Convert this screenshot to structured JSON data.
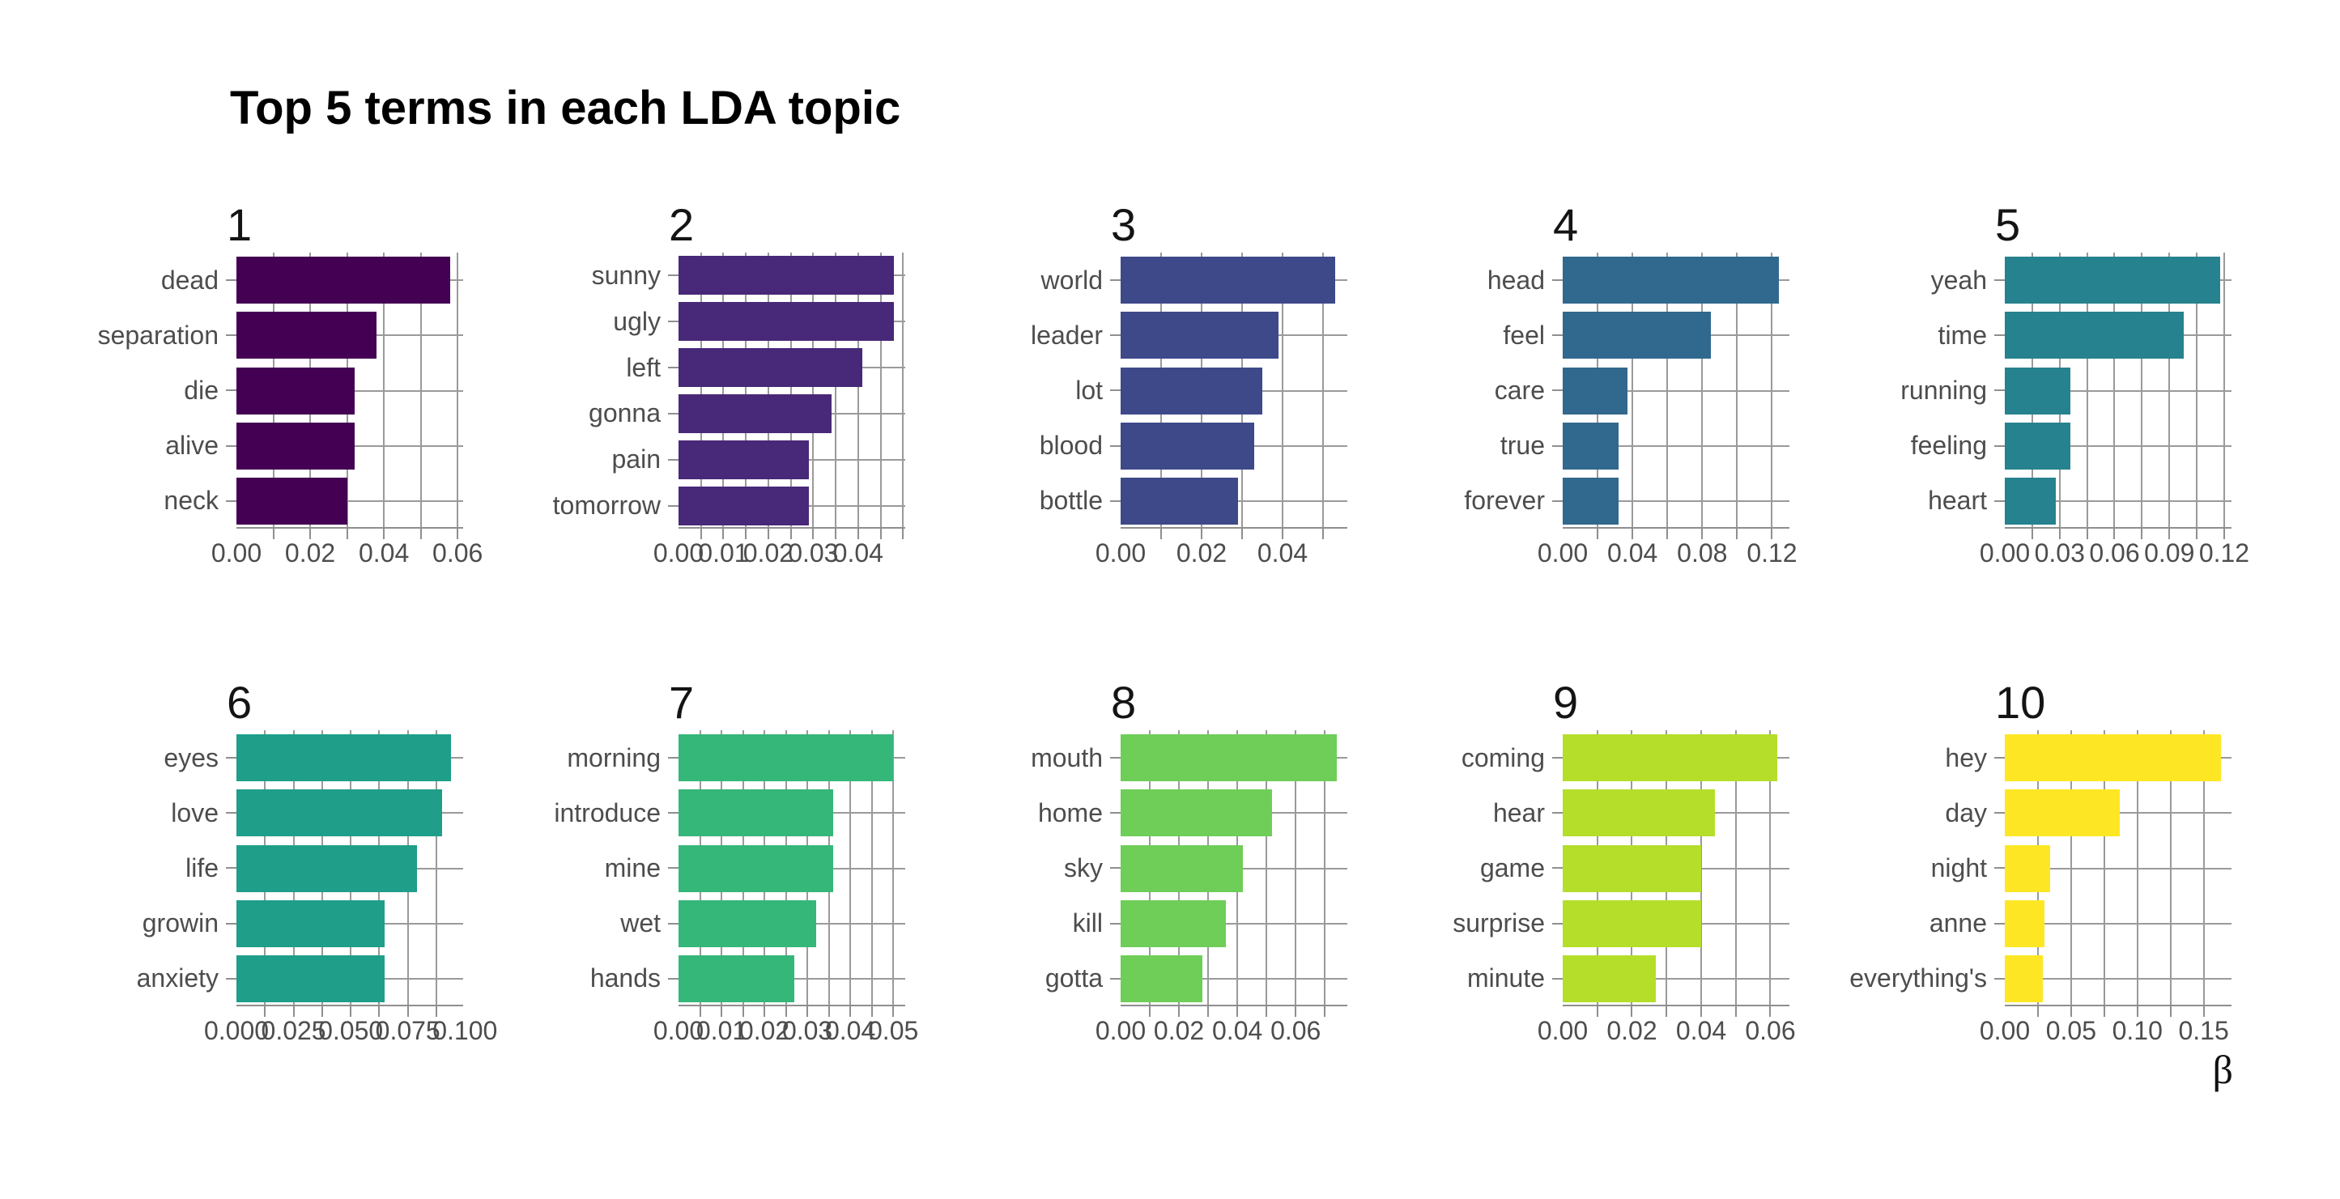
{
  "figure": {
    "title": "Top 5 terms in each LDA topic",
    "x_axis_title": "β"
  },
  "style": {
    "background": "#ffffff",
    "grid_color": "#9a9a9a",
    "tick_color": "#8f8f8f",
    "axis_text_color": "#4d4d4d",
    "strip_text_color": "#141414",
    "title_color": "#000000"
  },
  "chart_data": {
    "type": "bar",
    "orientation": "horizontal",
    "title": "Top 5 terms in each LDA topic",
    "xlabel": "β",
    "ylabel": "",
    "grid": true,
    "legend": false,
    "facet_layout": {
      "rows": 2,
      "cols": 5
    },
    "facets": [
      {
        "label": "1",
        "color": "#440154",
        "xmax": 0.0615,
        "minor_step": 0.01,
        "xticks": [
          {
            "v": 0,
            "label": "0.00"
          },
          {
            "v": 0.02,
            "label": "0.02"
          },
          {
            "v": 0.04,
            "label": "0.04"
          },
          {
            "v": 0.06,
            "label": "0.06"
          }
        ],
        "bars": [
          {
            "term": "dead",
            "value": 0.058
          },
          {
            "term": "separation",
            "value": 0.038
          },
          {
            "term": "die",
            "value": 0.032
          },
          {
            "term": "alive",
            "value": 0.032
          },
          {
            "term": "neck",
            "value": 0.03
          }
        ]
      },
      {
        "label": "2",
        "color": "#482878",
        "xmax": 0.0505,
        "minor_step": 0.005,
        "xticks": [
          {
            "v": 0,
            "label": "0.00"
          },
          {
            "v": 0.01,
            "label": "0.01"
          },
          {
            "v": 0.02,
            "label": "0.02"
          },
          {
            "v": 0.03,
            "label": "0.03"
          },
          {
            "v": 0.04,
            "label": "0.04"
          }
        ],
        "bars": [
          {
            "term": "sunny",
            "value": 0.048
          },
          {
            "term": "ugly",
            "value": 0.048
          },
          {
            "term": "left",
            "value": 0.041
          },
          {
            "term": "gonna",
            "value": 0.034
          },
          {
            "term": "pain",
            "value": 0.029
          },
          {
            "term": "tomorrow",
            "value": 0.029
          }
        ]
      },
      {
        "label": "3",
        "color": "#3e4989",
        "xmax": 0.056,
        "minor_step": 0.01,
        "xticks": [
          {
            "v": 0,
            "label": "0.00"
          },
          {
            "v": 0.02,
            "label": "0.02"
          },
          {
            "v": 0.04,
            "label": "0.04"
          }
        ],
        "bars": [
          {
            "term": "world",
            "value": 0.053
          },
          {
            "term": "leader",
            "value": 0.039
          },
          {
            "term": "lot",
            "value": 0.035
          },
          {
            "term": "blood",
            "value": 0.033
          },
          {
            "term": "bottle",
            "value": 0.029
          }
        ]
      },
      {
        "label": "4",
        "color": "#31688e",
        "xmax": 0.13,
        "minor_step": 0.02,
        "xticks": [
          {
            "v": 0,
            "label": "0.00"
          },
          {
            "v": 0.04,
            "label": "0.04"
          },
          {
            "v": 0.08,
            "label": "0.08"
          },
          {
            "v": 0.12,
            "label": "0.12"
          }
        ],
        "bars": [
          {
            "term": "head",
            "value": 0.124
          },
          {
            "term": "feel",
            "value": 0.085
          },
          {
            "term": "care",
            "value": 0.037
          },
          {
            "term": "true",
            "value": 0.032
          },
          {
            "term": "forever",
            "value": 0.032
          }
        ]
      },
      {
        "label": "5",
        "color": "#26828e",
        "xmax": 0.124,
        "minor_step": 0.015,
        "xticks": [
          {
            "v": 0,
            "label": "0.00"
          },
          {
            "v": 0.03,
            "label": "0.03"
          },
          {
            "v": 0.06,
            "label": "0.06"
          },
          {
            "v": 0.09,
            "label": "0.09"
          },
          {
            "v": 0.12,
            "label": "0.12"
          }
        ],
        "bars": [
          {
            "term": "yeah",
            "value": 0.118
          },
          {
            "term": "time",
            "value": 0.098
          },
          {
            "term": "running",
            "value": 0.036
          },
          {
            "term": "feeling",
            "value": 0.036
          },
          {
            "term": "heart",
            "value": 0.028
          }
        ]
      },
      {
        "label": "6",
        "color": "#1f9e89",
        "xmax": 0.0992,
        "minor_step": 0.0125,
        "xticks": [
          {
            "v": 0,
            "label": "0.000"
          },
          {
            "v": 0.025,
            "label": "0.025"
          },
          {
            "v": 0.05,
            "label": "0.050"
          },
          {
            "v": 0.075,
            "label": "0.075"
          },
          {
            "v": 0.1,
            "label": "0.100"
          }
        ],
        "bars": [
          {
            "term": "eyes",
            "value": 0.094
          },
          {
            "term": "love",
            "value": 0.09
          },
          {
            "term": "life",
            "value": 0.079
          },
          {
            "term": "growin",
            "value": 0.065
          },
          {
            "term": "anxiety",
            "value": 0.065
          }
        ]
      },
      {
        "label": "7",
        "color": "#35b779",
        "xmax": 0.0528,
        "minor_step": 0.005,
        "xticks": [
          {
            "v": 0,
            "label": "0.00"
          },
          {
            "v": 0.01,
            "label": "0.01"
          },
          {
            "v": 0.02,
            "label": "0.02"
          },
          {
            "v": 0.03,
            "label": "0.03"
          },
          {
            "v": 0.04,
            "label": "0.04"
          },
          {
            "v": 0.05,
            "label": "0.05"
          }
        ],
        "bars": [
          {
            "term": "morning",
            "value": 0.05
          },
          {
            "term": "introduce",
            "value": 0.036
          },
          {
            "term": "mine",
            "value": 0.036
          },
          {
            "term": "wet",
            "value": 0.032
          },
          {
            "term": "hands",
            "value": 0.027
          }
        ]
      },
      {
        "label": "8",
        "color": "#6ece58",
        "xmax": 0.0777,
        "minor_step": 0.01,
        "xticks": [
          {
            "v": 0,
            "label": "0.00"
          },
          {
            "v": 0.02,
            "label": "0.02"
          },
          {
            "v": 0.04,
            "label": "0.04"
          },
          {
            "v": 0.06,
            "label": "0.06"
          }
        ],
        "bars": [
          {
            "term": "mouth",
            "value": 0.074
          },
          {
            "term": "home",
            "value": 0.052
          },
          {
            "term": "sky",
            "value": 0.042
          },
          {
            "term": "kill",
            "value": 0.036
          },
          {
            "term": "gotta",
            "value": 0.028
          }
        ]
      },
      {
        "label": "9",
        "color": "#b5de2b",
        "xmax": 0.0655,
        "minor_step": 0.01,
        "xticks": [
          {
            "v": 0,
            "label": "0.00"
          },
          {
            "v": 0.02,
            "label": "0.02"
          },
          {
            "v": 0.04,
            "label": "0.04"
          },
          {
            "v": 0.06,
            "label": "0.06"
          }
        ],
        "bars": [
          {
            "term": "coming",
            "value": 0.062
          },
          {
            "term": "hear",
            "value": 0.044
          },
          {
            "term": "game",
            "value": 0.04
          },
          {
            "term": "surprise",
            "value": 0.04
          },
          {
            "term": "minute",
            "value": 0.027
          }
        ]
      },
      {
        "label": "10",
        "color": "#fde725",
        "xmax": 0.171,
        "minor_step": 0.025,
        "xticks": [
          {
            "v": 0,
            "label": "0.00"
          },
          {
            "v": 0.05,
            "label": "0.05"
          },
          {
            "v": 0.1,
            "label": "0.10"
          },
          {
            "v": 0.15,
            "label": "0.15"
          }
        ],
        "bars": [
          {
            "term": "hey",
            "value": 0.163
          },
          {
            "term": "day",
            "value": 0.087
          },
          {
            "term": "night",
            "value": 0.034
          },
          {
            "term": "anne",
            "value": 0.03
          },
          {
            "term": "everything's",
            "value": 0.029
          }
        ]
      }
    ]
  }
}
